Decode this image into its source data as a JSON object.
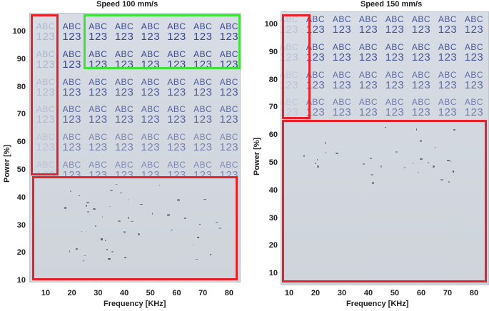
{
  "left_panel": {
    "speed_label": "Speed  100 mm/s",
    "y_axis_label": "Power [%]",
    "x_axis_label": "Frequency [KHz]",
    "y_ticks": [
      "100",
      "90",
      "80",
      "70",
      "60",
      "50",
      "40",
      "30",
      "20",
      "10"
    ],
    "x_ticks": [
      "10",
      "20",
      "30",
      "40",
      "50",
      "60",
      "70",
      "80"
    ],
    "cell_text_line1": "ABC",
    "cell_text_line2": "123"
  },
  "right_panel": {
    "speed_label": "Speed  150 mm/s",
    "y_axis_label": "Power [%]",
    "x_axis_label": "Frequency [KHz]",
    "y_ticks": [
      "100",
      "90",
      "80",
      "70",
      "60",
      "50",
      "40",
      "30",
      "20",
      "10"
    ],
    "x_ticks": [
      "10",
      "20",
      "30",
      "40",
      "50",
      "60",
      "70",
      "80"
    ],
    "cell_text_line1": "ABC",
    "cell_text_line2": "123"
  },
  "colors": {
    "red_box": "#e8202a",
    "green_box": "#3ee03a",
    "marking": "#2f3f8a",
    "plate": "#d5dae2"
  }
}
